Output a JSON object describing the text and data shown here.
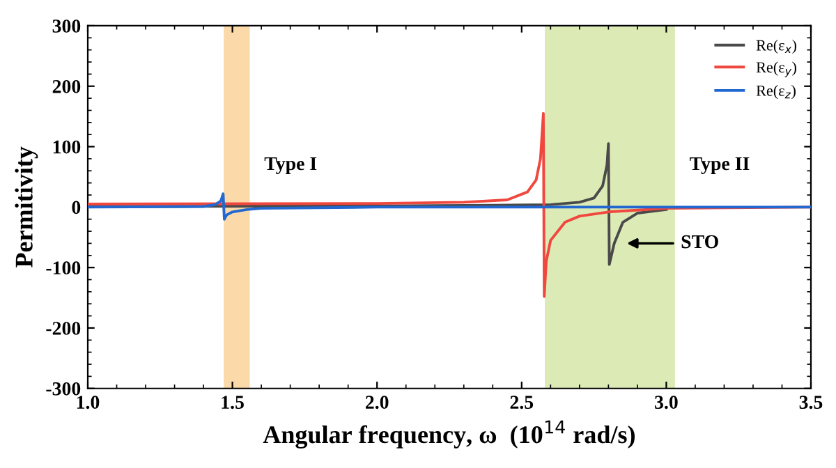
{
  "chart_data": {
    "type": "line",
    "xlabel": "Angular frequency, ω  (10$^{14}$ rad/s)",
    "ylabel": "Permitivity",
    "xlim": [
      1.0,
      3.5
    ],
    "xticks": [
      {
        "value": 1.0,
        "label": "1.0"
      },
      {
        "value": 1.5,
        "label": "1.5"
      },
      {
        "value": 2.0,
        "label": "2.0"
      },
      {
        "value": 2.5,
        "label": "2.5"
      },
      {
        "value": 3.0,
        "label": "3.0"
      },
      {
        "value": 3.5,
        "label": "3.5"
      }
    ],
    "ylim": [
      -300,
      300
    ],
    "yticks": [
      -300,
      -200,
      -100,
      0,
      100,
      200,
      300
    ],
    "legend": "top right",
    "grid": false,
    "line_style": "solid",
    "marker": "none",
    "series": [
      {
        "name": "Re(ε$_{x}$)",
        "color": "#4a4a4a",
        "x": [
          1.0,
          2.0,
          2.4,
          2.6,
          2.7,
          2.75,
          2.78,
          2.795,
          2.8,
          2.803,
          2.82,
          2.85,
          2.9,
          3.0
        ],
        "values": [
          1,
          2,
          3,
          4,
          8,
          15,
          35,
          70,
          105,
          -95,
          -60,
          -25,
          -10,
          -4
        ]
      },
      {
        "name": "Re(ε$_{y}$)",
        "color": "#f0483e",
        "x": [
          1.0,
          2.0,
          2.3,
          2.45,
          2.52,
          2.55,
          2.565,
          2.575,
          2.578,
          2.585,
          2.6,
          2.65,
          2.7,
          2.8,
          3.0,
          3.5
        ],
        "values": [
          5,
          6,
          8,
          12,
          25,
          45,
          80,
          155,
          -148,
          -90,
          -55,
          -25,
          -15,
          -8,
          -2,
          0
        ]
      },
      {
        "name": "Re(ε$_{z}$)",
        "color": "#2268d0",
        "x": [
          1.0,
          1.4,
          1.44,
          1.46,
          1.468,
          1.472,
          1.48,
          1.5,
          1.55,
          1.6,
          2.0,
          3.5
        ],
        "values": [
          0,
          1,
          4,
          10,
          22,
          -20,
          -13,
          -8,
          -4,
          -2,
          0,
          0
        ]
      }
    ],
    "bands": [
      {
        "axis": "x",
        "from": 1.47,
        "to": 1.56,
        "label": "Type I",
        "color": "#fbd9a8"
      },
      {
        "axis": "x",
        "from": 2.58,
        "to": 3.03,
        "label": "Type II",
        "color": "#dcebb5"
      }
    ],
    "annotations": [
      {
        "text": "STO",
        "x": 2.85,
        "y": -60
      }
    ]
  }
}
